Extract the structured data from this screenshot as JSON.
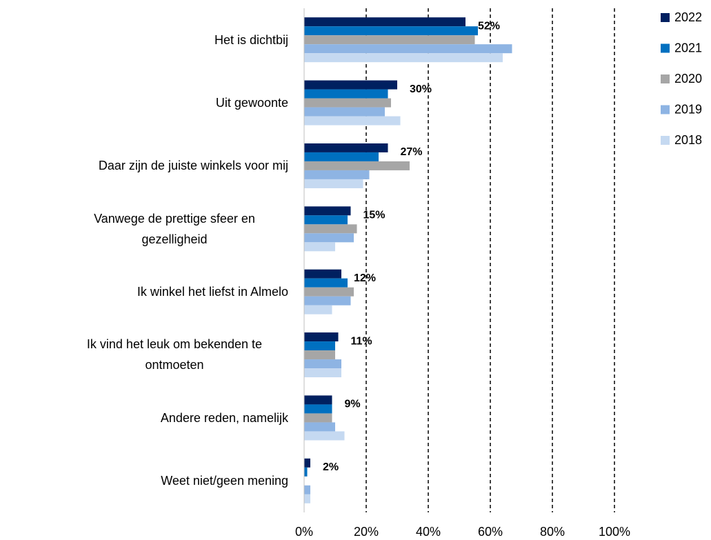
{
  "chart_data": {
    "type": "bar",
    "orientation": "horizontal",
    "categories": [
      "Het is dichtbij",
      "Uit gewoonte",
      "Daar zijn de juiste winkels voor mij",
      "Vanwege de prettige sfeer en gezelligheid",
      "Ik winkel het liefst in Almelo",
      "Ik vind het leuk om bekenden te ontmoeten",
      "Andere reden, namelijk",
      "Weet niet/geen mening"
    ],
    "series": [
      {
        "name": "2022",
        "color": "#002060",
        "values": [
          52,
          30,
          27,
          15,
          12,
          11,
          9,
          2
        ],
        "value_labels": [
          "52%",
          "30%",
          "27%",
          "15%",
          "12%",
          "11%",
          "9%",
          "2%"
        ]
      },
      {
        "name": "2021",
        "color": "#0070c0",
        "values": [
          56,
          27,
          24,
          14,
          14,
          10,
          9,
          1
        ]
      },
      {
        "name": "2020",
        "color": "#a6a6a6",
        "values": [
          55,
          28,
          34,
          17,
          16,
          10,
          9,
          0
        ]
      },
      {
        "name": "2019",
        "color": "#8eb4e3",
        "values": [
          67,
          26,
          21,
          16,
          15,
          12,
          10,
          2
        ]
      },
      {
        "name": "2018",
        "color": "#c5d9f1",
        "values": [
          64,
          31,
          19,
          10,
          9,
          12,
          13,
          2
        ]
      }
    ],
    "xlim": [
      0,
      100
    ],
    "xticks": [
      {
        "value": 0,
        "label": "0%"
      },
      {
        "value": 20,
        "label": "20%"
      },
      {
        "value": 40,
        "label": "40%"
      },
      {
        "value": 60,
        "label": "60%"
      },
      {
        "value": 80,
        "label": "80%"
      },
      {
        "value": 100,
        "label": "100%"
      }
    ],
    "grid": true,
    "legend": "right"
  }
}
